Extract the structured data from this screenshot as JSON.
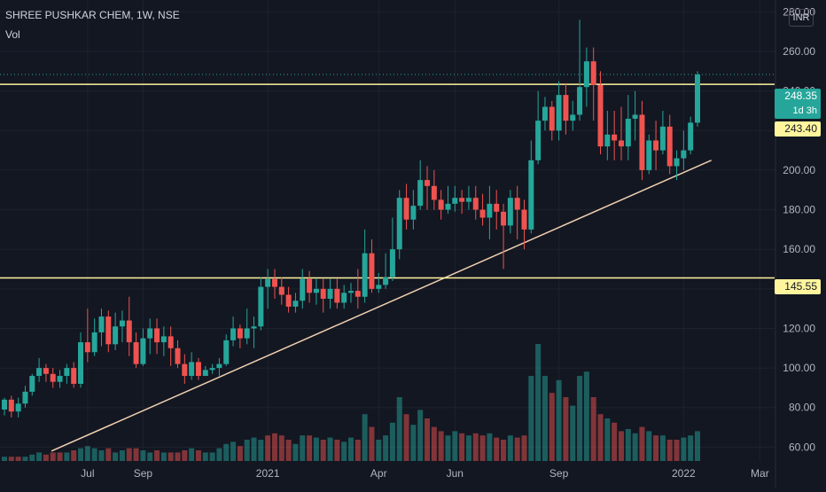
{
  "header": {
    "title": "SHREE PUSHKAR CHEM, 1W, NSE",
    "indicator": "Vol"
  },
  "currency": "INR",
  "colors": {
    "up": "#26a69a",
    "down": "#ef5350",
    "upVol": "#26a69a",
    "downVol": "#ef5350",
    "level": "#fff59d",
    "trend": "#f0d0b0",
    "bg": "#131722",
    "grid": "#1e222d",
    "text": "#b2b5be"
  },
  "levels": {
    "upper": "243.40",
    "lower": "145.55"
  },
  "price_tag": {
    "price": "248.35",
    "countdown": "1d 3h"
  },
  "chart_data": {
    "type": "candlestick",
    "price_axis": {
      "ticks": [
        "60.00",
        "80.00",
        "100.00",
        "120.00",
        "140.00",
        "160.00",
        "180.00",
        "200.00",
        "220.00",
        "240.00",
        "260.00",
        "280.00"
      ],
      "range": [
        53,
        286
      ]
    },
    "time_axis": {
      "labels": [
        "Jul",
        "Sep",
        "2021",
        "Apr",
        "Jun",
        "Sep",
        "2022",
        "Mar"
      ]
    },
    "horizontal_lines": [
      243.4,
      145.55
    ],
    "trendline": [
      [
        0,
        58
      ],
      [
        102,
        205
      ]
    ],
    "candles": [
      [
        79,
        84,
        76,
        85
      ],
      [
        84,
        78,
        75,
        86
      ],
      [
        78,
        82,
        75,
        85
      ],
      [
        82,
        88,
        80,
        91
      ],
      [
        88,
        96,
        86,
        97
      ],
      [
        96,
        100,
        93,
        105
      ],
      [
        100,
        97,
        93,
        102
      ],
      [
        97,
        93,
        90,
        100
      ],
      [
        93,
        96,
        90,
        99
      ],
      [
        96,
        100,
        92,
        102
      ],
      [
        100,
        92,
        90,
        103
      ],
      [
        92,
        113,
        90,
        118
      ],
      [
        113,
        108,
        103,
        130
      ],
      [
        108,
        118,
        106,
        125
      ],
      [
        118,
        126,
        111,
        130
      ],
      [
        126,
        112,
        108,
        129
      ],
      [
        112,
        121,
        109,
        128
      ],
      [
        121,
        124,
        113,
        129
      ],
      [
        124,
        113,
        106,
        136
      ],
      [
        113,
        102,
        100,
        118
      ],
      [
        102,
        115,
        101,
        120
      ],
      [
        115,
        120,
        107,
        125
      ],
      [
        120,
        113,
        107,
        125
      ],
      [
        113,
        116,
        106,
        121
      ],
      [
        116,
        110,
        101,
        121
      ],
      [
        110,
        102,
        100,
        114
      ],
      [
        102,
        96,
        92,
        107
      ],
      [
        96,
        103,
        94,
        108
      ],
      [
        103,
        96,
        94,
        105
      ],
      [
        96,
        99,
        96,
        101
      ],
      [
        99,
        100,
        97,
        102
      ],
      [
        100,
        102,
        96,
        105
      ],
      [
        102,
        114,
        101,
        117
      ],
      [
        114,
        120,
        111,
        126
      ],
      [
        120,
        115,
        110,
        122
      ],
      [
        115,
        120,
        112,
        130
      ],
      [
        120,
        121,
        110,
        126
      ],
      [
        121,
        141,
        119,
        146
      ],
      [
        141,
        145,
        130,
        150
      ],
      [
        145,
        141,
        135,
        150
      ],
      [
        141,
        137,
        132,
        146
      ],
      [
        137,
        131,
        128,
        141
      ],
      [
        131,
        134,
        128,
        138
      ],
      [
        134,
        145,
        130,
        150
      ],
      [
        145,
        138,
        133,
        149
      ],
      [
        138,
        140,
        132,
        145
      ],
      [
        140,
        135,
        128,
        145
      ],
      [
        135,
        140,
        130,
        145
      ],
      [
        140,
        133,
        130,
        145
      ],
      [
        133,
        138,
        130,
        142
      ],
      [
        138,
        139,
        133,
        143
      ],
      [
        139,
        136,
        130,
        150
      ],
      [
        136,
        158,
        133,
        170
      ],
      [
        158,
        140,
        138,
        165
      ],
      [
        140,
        142,
        138,
        148
      ],
      [
        142,
        146,
        140,
        158
      ],
      [
        146,
        160,
        144,
        176
      ],
      [
        160,
        186,
        155,
        190
      ],
      [
        186,
        175,
        170,
        193
      ],
      [
        175,
        182,
        170,
        190
      ],
      [
        182,
        195,
        180,
        205
      ],
      [
        195,
        192,
        180,
        202
      ],
      [
        192,
        185,
        180,
        200
      ],
      [
        185,
        180,
        175,
        190
      ],
      [
        180,
        183,
        178,
        192
      ],
      [
        183,
        186,
        179,
        192
      ],
      [
        186,
        184,
        178,
        190
      ],
      [
        184,
        186,
        180,
        192
      ],
      [
        186,
        180,
        175,
        192
      ],
      [
        180,
        176,
        172,
        188
      ],
      [
        176,
        183,
        165,
        192
      ],
      [
        183,
        179,
        170,
        190
      ],
      [
        179,
        172,
        150,
        183
      ],
      [
        172,
        186,
        168,
        190
      ],
      [
        186,
        180,
        165,
        192
      ],
      [
        180,
        170,
        160,
        185
      ],
      [
        170,
        205,
        168,
        215
      ],
      [
        205,
        225,
        203,
        240
      ],
      [
        225,
        232,
        220,
        237
      ],
      [
        232,
        220,
        215,
        235
      ],
      [
        220,
        238,
        215,
        245
      ],
      [
        238,
        225,
        218,
        244
      ],
      [
        225,
        228,
        220,
        235
      ],
      [
        228,
        242,
        225,
        276
      ],
      [
        242,
        255,
        232,
        262
      ],
      [
        255,
        243,
        225,
        262
      ],
      [
        243,
        212,
        208,
        250
      ],
      [
        212,
        218,
        205,
        230
      ],
      [
        218,
        215,
        205,
        230
      ],
      [
        215,
        212,
        205,
        232
      ],
      [
        212,
        226,
        205,
        238
      ],
      [
        226,
        228,
        215,
        240
      ],
      [
        228,
        200,
        195,
        235
      ],
      [
        200,
        215,
        198,
        218
      ],
      [
        215,
        210,
        200,
        225
      ],
      [
        210,
        222,
        208,
        230
      ],
      [
        222,
        202,
        198,
        228
      ],
      [
        202,
        206,
        195,
        210
      ],
      [
        206,
        210,
        200,
        220
      ],
      [
        210,
        224,
        208,
        227
      ],
      [
        224,
        248.35,
        222,
        250
      ]
    ],
    "volume": [
      [
        2,
        1
      ],
      [
        2,
        0
      ],
      [
        2,
        0
      ],
      [
        2,
        1
      ],
      [
        3,
        1
      ],
      [
        4,
        1
      ],
      [
        3,
        0
      ],
      [
        4,
        0
      ],
      [
        4,
        0
      ],
      [
        4,
        1
      ],
      [
        5,
        0
      ],
      [
        6,
        1
      ],
      [
        7,
        1
      ],
      [
        6,
        1
      ],
      [
        5,
        1
      ],
      [
        6,
        0
      ],
      [
        4,
        1
      ],
      [
        5,
        1
      ],
      [
        6,
        0
      ],
      [
        6,
        0
      ],
      [
        5,
        1
      ],
      [
        4,
        1
      ],
      [
        5,
        0
      ],
      [
        4,
        1
      ],
      [
        4,
        0
      ],
      [
        4,
        0
      ],
      [
        5,
        0
      ],
      [
        6,
        1
      ],
      [
        5,
        0
      ],
      [
        4,
        1
      ],
      [
        4,
        1
      ],
      [
        6,
        1
      ],
      [
        8,
        1
      ],
      [
        9,
        1
      ],
      [
        7,
        0
      ],
      [
        10,
        1
      ],
      [
        11,
        1
      ],
      [
        10,
        1
      ],
      [
        12,
        0
      ],
      [
        13,
        0
      ],
      [
        12,
        0
      ],
      [
        10,
        0
      ],
      [
        8,
        1
      ],
      [
        12,
        1
      ],
      [
        12,
        0
      ],
      [
        11,
        1
      ],
      [
        10,
        0
      ],
      [
        11,
        1
      ],
      [
        10,
        0
      ],
      [
        9,
        1
      ],
      [
        11,
        1
      ],
      [
        10,
        0
      ],
      [
        22,
        1
      ],
      [
        16,
        0
      ],
      [
        10,
        1
      ],
      [
        12,
        1
      ],
      [
        18,
        1
      ],
      [
        30,
        1
      ],
      [
        22,
        0
      ],
      [
        17,
        1
      ],
      [
        24,
        1
      ],
      [
        20,
        0
      ],
      [
        16,
        0
      ],
      [
        14,
        0
      ],
      [
        12,
        1
      ],
      [
        14,
        1
      ],
      [
        13,
        0
      ],
      [
        12,
        1
      ],
      [
        13,
        0
      ],
      [
        12,
        0
      ],
      [
        13,
        1
      ],
      [
        11,
        0
      ],
      [
        10,
        0
      ],
      [
        12,
        1
      ],
      [
        11,
        0
      ],
      [
        12,
        0
      ],
      [
        40,
        1
      ],
      [
        55,
        1
      ],
      [
        40,
        1
      ],
      [
        32,
        0
      ],
      [
        38,
        1
      ],
      [
        30,
        0
      ],
      [
        26,
        1
      ],
      [
        40,
        1
      ],
      [
        42,
        1
      ],
      [
        30,
        0
      ],
      [
        22,
        0
      ],
      [
        20,
        1
      ],
      [
        18,
        0
      ],
      [
        14,
        0
      ],
      [
        15,
        1
      ],
      [
        13,
        1
      ],
      [
        16,
        0
      ],
      [
        14,
        1
      ],
      [
        12,
        0
      ],
      [
        12,
        1
      ],
      [
        10,
        0
      ],
      [
        10,
        0
      ],
      [
        11,
        1
      ],
      [
        12,
        1
      ],
      [
        14,
        1
      ]
    ]
  }
}
